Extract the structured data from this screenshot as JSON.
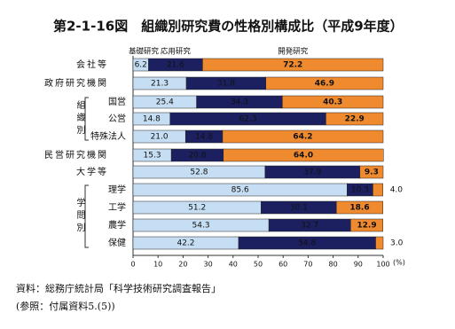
{
  "chart_data": {
    "type": "stacked-bar-horizontal",
    "title": "第2-1-16図　組織別研究費の性格別構成比（平成9年度）",
    "categories": [
      "会社等",
      "政府研究機関",
      "国営",
      "公営",
      "特殊法人",
      "民営研究機関",
      "大学等",
      "理学",
      "工学",
      "農学",
      "保健"
    ],
    "group_labels": [
      "組織別",
      "学問別"
    ],
    "series": [
      {
        "name": "基礎研究",
        "color": "#c6def3",
        "values": [
          6.2,
          21.3,
          25.4,
          14.8,
          21.0,
          15.3,
          52.8,
          85.6,
          51.2,
          54.3,
          42.2
        ],
        "value_labels": [
          "6.2",
          "21.3",
          "25.4",
          "14.8",
          "21.0",
          "15.3",
          "52.8",
          "85.6",
          "51.2",
          "54.3",
          "42.2"
        ]
      },
      {
        "name": "応用研究",
        "color": "#1c2060",
        "values": [
          21.6,
          31.8,
          34.3,
          62.3,
          14.8,
          20.8,
          37.9,
          10.3,
          30.1,
          32.7,
          54.8
        ],
        "value_labels": [
          "21.6",
          "31.8",
          "34.3",
          "62.3",
          "14.8",
          "20.8",
          "37.9",
          "10.3",
          "30.1",
          "32.7",
          "54.8"
        ]
      },
      {
        "name": "開発研究",
        "color": "#ef8a2e",
        "values": [
          72.2,
          46.9,
          40.3,
          22.9,
          64.2,
          64.0,
          9.3,
          4.0,
          18.6,
          12.9,
          3.0
        ],
        "value_labels": [
          "72.2",
          "46.9",
          "40.3",
          "22.9",
          "64.2",
          "64.0",
          "9.3",
          "4.0",
          "18.6",
          "12.9",
          "3.0"
        ]
      }
    ],
    "xlim": [
      0,
      100
    ],
    "xticks": [
      0,
      10,
      20,
      30,
      40,
      50,
      60,
      70,
      80,
      90,
      100
    ],
    "x_unit": "(%)",
    "source": "資料：総務庁統計局「科学技術研究調査報告」",
    "note": "(参照：付属資料5.(5))"
  }
}
